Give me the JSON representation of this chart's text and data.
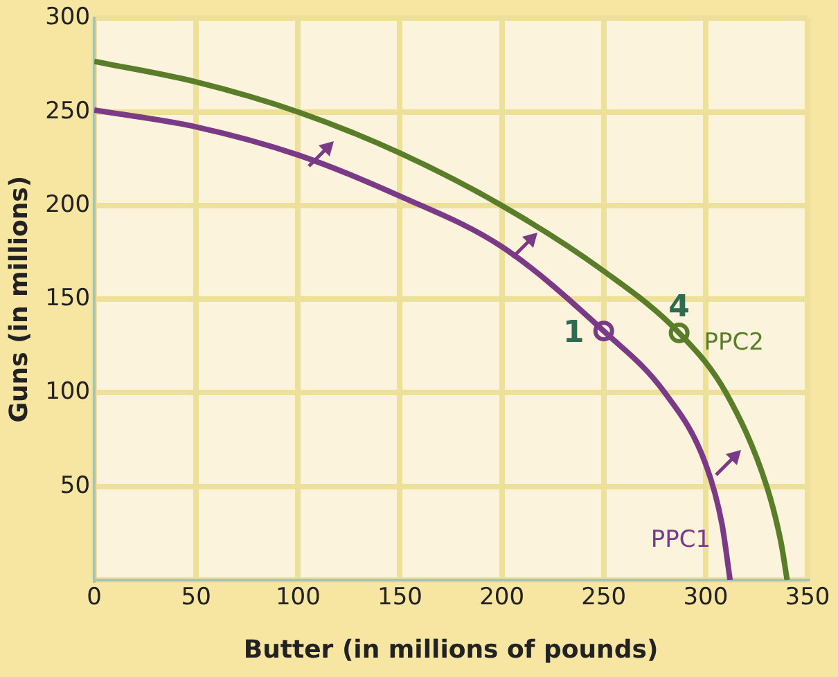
{
  "chart_data": {
    "type": "line",
    "xlabel": "Butter (in millions of pounds)",
    "ylabel": "Guns (in millions)",
    "xlim": [
      0,
      350
    ],
    "xticks": [
      0,
      50,
      100,
      150,
      200,
      250,
      300,
      350
    ],
    "ylim": [
      0,
      300
    ],
    "yticks": [
      {
        "value": 0,
        "label": null
      },
      50,
      100,
      150,
      200,
      250,
      300
    ],
    "grid": true,
    "legend": false,
    "marker": "none",
    "line_style": "solid",
    "series": [
      {
        "name": "PPC1",
        "color": "#7b3a86",
        "x": [
          0,
          50,
          100,
          150,
          200,
          250,
          280,
          300,
          308,
          312
        ],
        "values": [
          251,
          242,
          227,
          205,
          178,
          133,
          100,
          62,
          30,
          0
        ]
      },
      {
        "name": "PPC2",
        "color": "#5a7d2a",
        "x": [
          0,
          50,
          100,
          150,
          200,
          250,
          287,
          310,
          330,
          337,
          340
        ],
        "values": [
          277,
          266,
          250,
          228,
          200,
          165,
          132,
          100,
          50,
          20,
          0
        ]
      },
      {
        "type": "scatter",
        "marker": "circle",
        "color": "#7b3a86",
        "x": [
          250
        ],
        "values": [
          133
        ]
      },
      {
        "type": "scatter",
        "marker": "circle",
        "color": "#5a7d2a",
        "x": [
          287
        ],
        "values": [
          132
        ]
      }
    ],
    "annotations": [
      {
        "text": "1",
        "x": 250,
        "y": 133
      },
      {
        "text": "4",
        "x": 287,
        "y": 132
      }
    ]
  }
}
